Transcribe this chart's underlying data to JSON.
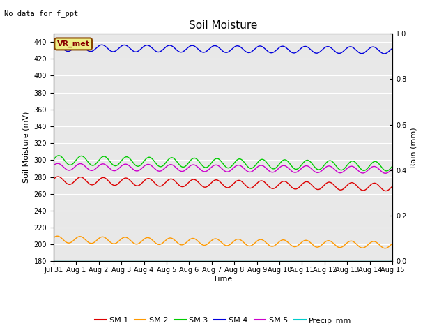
{
  "title": "Soil Moisture",
  "no_data_text": "No data for f_ppt",
  "xlabel": "Time",
  "ylabel_left": "Soil Moisture (mV)",
  "ylabel_right": "Rain (mm)",
  "ylim_left": [
    180,
    450
  ],
  "ylim_right": [
    0.0,
    1.0
  ],
  "yticks_left": [
    180,
    200,
    220,
    240,
    260,
    280,
    300,
    320,
    340,
    360,
    380,
    400,
    420,
    440
  ],
  "yticks_right": [
    0.0,
    0.2,
    0.4,
    0.6,
    0.8,
    1.0
  ],
  "n_days": 15,
  "sm1_base": 276,
  "sm1_trend": -0.55,
  "sm1_amp": 4.5,
  "sm2_base": 206,
  "sm2_trend": -0.45,
  "sm2_amp": 4.0,
  "sm3_base": 300,
  "sm3_trend": -0.5,
  "sm3_amp": 5.5,
  "sm4_base": 433,
  "sm4_trend": -0.2,
  "sm4_amp": 4.0,
  "sm5_base": 292,
  "sm5_trend": -0.25,
  "sm5_amp": 4.0,
  "precip_base": 180,
  "sm1_color": "#dd0000",
  "sm2_color": "#ff9900",
  "sm3_color": "#00cc00",
  "sm4_color": "#0000dd",
  "sm5_color": "#cc00cc",
  "precip_color": "#00cccc",
  "bg_color": "#e8e8e8",
  "grid_color": "#ffffff",
  "fig_bg_color": "#ffffff",
  "vr_met_bg": "#eeee88",
  "vr_met_border": "#884400",
  "vr_met_text": "#880000",
  "x_tick_labels": [
    "Jul 31",
    "Aug 1",
    "Aug 2",
    "Aug 3",
    "Aug 4",
    "Aug 5",
    "Aug 6",
    "Aug 7",
    "Aug 8",
    "Aug 9",
    "Aug 10",
    "Aug 11",
    "Aug 12",
    "Aug 13",
    "Aug 14",
    "Aug 15"
  ],
  "legend_labels": [
    "SM 1",
    "SM 2",
    "SM 3",
    "SM 4",
    "SM 5",
    "Precip_mm"
  ],
  "legend_colors": [
    "#dd0000",
    "#ff9900",
    "#00cc00",
    "#0000dd",
    "#cc00cc",
    "#00cccc"
  ]
}
